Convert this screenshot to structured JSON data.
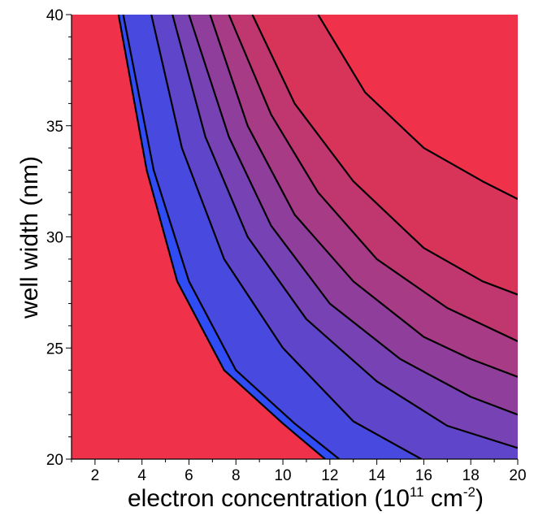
{
  "chart_data": {
    "type": "heatmap",
    "title": "",
    "xlabel": "electron concentration (10",
    "xlabel_sup1": "11",
    "xlabel_mid": " cm",
    "xlabel_sup2": "-2",
    "xlabel_end": ")",
    "ylabel": "well width (nm)",
    "xlim": [
      1,
      20
    ],
    "ylim": [
      20,
      40
    ],
    "x_ticks": [
      2,
      4,
      6,
      8,
      10,
      12,
      14,
      16,
      18,
      20
    ],
    "y_ticks": [
      20,
      25,
      30,
      35,
      40
    ],
    "grid": false,
    "legend": "none",
    "colors": {
      "outside": "#f0314a",
      "band_low": "#2f4cf5",
      "band_high": "#d8345a",
      "contour": "#000000"
    },
    "contours": [
      {
        "level": 1,
        "points": [
          [
            3.0,
            40
          ],
          [
            4.2,
            33
          ],
          [
            5.5,
            28
          ],
          [
            7.5,
            24
          ],
          [
            10.0,
            21.6
          ],
          [
            11.8,
            20
          ]
        ]
      },
      {
        "level": 2,
        "points": [
          [
            3.2,
            40
          ],
          [
            4.5,
            33
          ],
          [
            6.0,
            28
          ],
          [
            8.0,
            24
          ],
          [
            10.5,
            21.6
          ],
          [
            12.4,
            20
          ]
        ]
      },
      {
        "level": 3,
        "points": [
          [
            4.4,
            40
          ],
          [
            5.7,
            34
          ],
          [
            7.5,
            29
          ],
          [
            10.0,
            25
          ],
          [
            13.0,
            21.7
          ],
          [
            15.9,
            20
          ]
        ]
      },
      {
        "level": 4,
        "points": [
          [
            5.3,
            40
          ],
          [
            6.7,
            34.5
          ],
          [
            8.5,
            30
          ],
          [
            11.0,
            26.3
          ],
          [
            14.0,
            23.5
          ],
          [
            17.0,
            21.5
          ],
          [
            20.0,
            20.5
          ]
        ]
      },
      {
        "level": 5,
        "points": [
          [
            6.0,
            40
          ],
          [
            7.7,
            34.5
          ],
          [
            9.5,
            30.5
          ],
          [
            12.0,
            27
          ],
          [
            15.0,
            24.5
          ],
          [
            18.0,
            22.8
          ],
          [
            20.0,
            22
          ]
        ]
      },
      {
        "level": 6,
        "points": [
          [
            6.9,
            40
          ],
          [
            8.5,
            35
          ],
          [
            10.5,
            31
          ],
          [
            13.0,
            28
          ],
          [
            16.0,
            25.5
          ],
          [
            18.0,
            24.5
          ],
          [
            20.0,
            23.7
          ]
        ]
      },
      {
        "level": 7,
        "points": [
          [
            7.7,
            40
          ],
          [
            9.5,
            35.5
          ],
          [
            11.5,
            32
          ],
          [
            14.0,
            29
          ],
          [
            17.0,
            26.8
          ],
          [
            20.0,
            25.3
          ]
        ]
      },
      {
        "level": 8,
        "points": [
          [
            8.7,
            40
          ],
          [
            10.5,
            36
          ],
          [
            13.0,
            32.5
          ],
          [
            16.0,
            29.5
          ],
          [
            18.5,
            28
          ],
          [
            20.0,
            27.4
          ]
        ]
      },
      {
        "level": 9,
        "points": [
          [
            11.5,
            40
          ],
          [
            13.5,
            36.5
          ],
          [
            16.0,
            34
          ],
          [
            18.5,
            32.5
          ],
          [
            20.0,
            31.7
          ]
        ]
      }
    ],
    "region_boundary_left": [
      [
        3.0,
        40
      ],
      [
        4.2,
        33
      ],
      [
        5.5,
        28
      ],
      [
        7.5,
        24
      ],
      [
        10.0,
        21.6
      ],
      [
        11.8,
        20
      ]
    ],
    "region_boundary_right": [
      [
        11.5,
        40
      ],
      [
        13.5,
        36.5
      ],
      [
        16.0,
        34
      ],
      [
        18.5,
        32.5
      ],
      [
        20.0,
        31.7
      ]
    ]
  }
}
